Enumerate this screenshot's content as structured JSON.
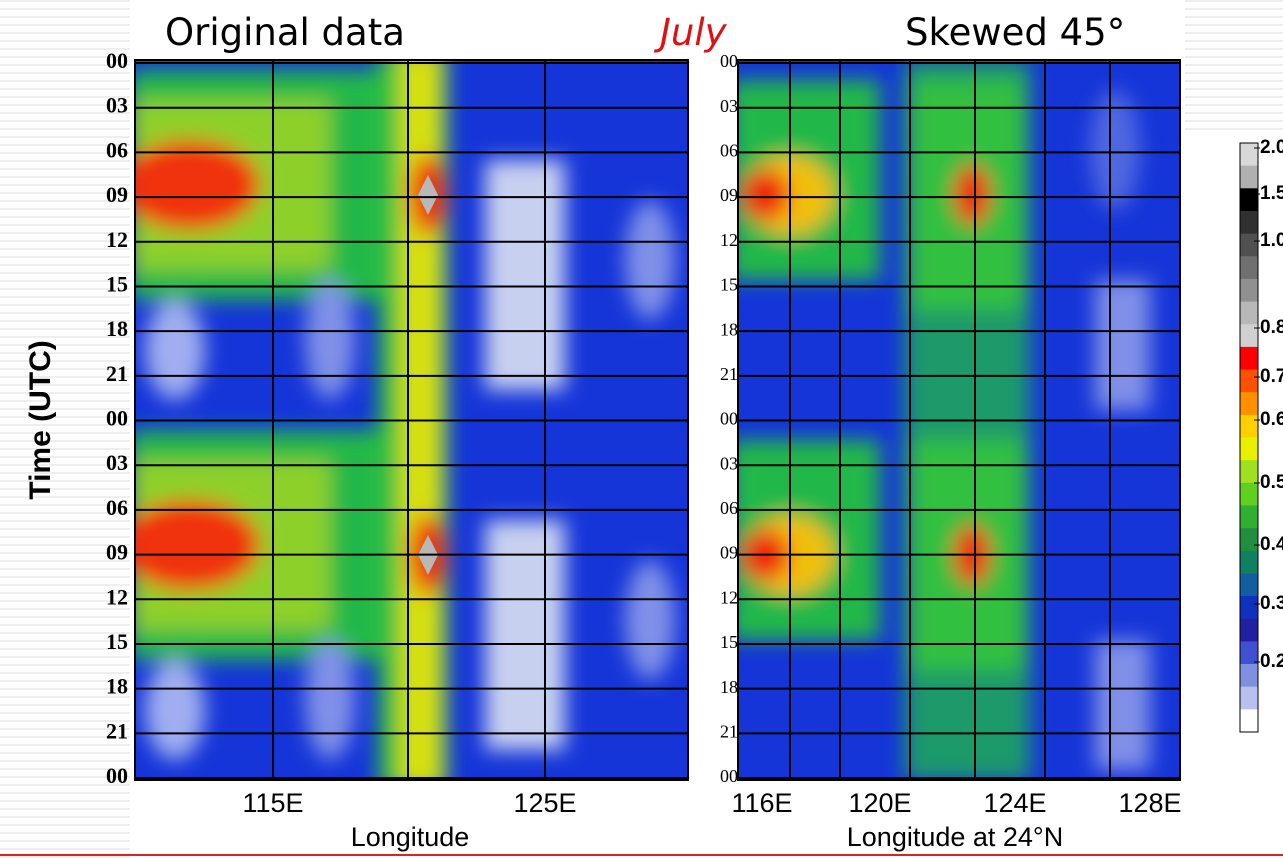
{
  "title": {
    "left": "Original data",
    "center": "July",
    "right": "Skewed 45°"
  },
  "y_axis_label": "Time (UTC)",
  "left_panel": {
    "y_labels": [
      "00",
      "03",
      "06",
      "09",
      "12",
      "15",
      "18",
      "21",
      "00",
      "03",
      "06",
      "09",
      "12",
      "15",
      "18",
      "21",
      "00"
    ],
    "x_labels": [
      "115E",
      "125E"
    ],
    "x_title": "Longitude"
  },
  "right_panel": {
    "y_labels": [
      "00",
      "03",
      "06",
      "09",
      "12",
      "15",
      "18",
      "21",
      "00",
      "03",
      "06",
      "09",
      "12",
      "15",
      "18",
      "21",
      "00"
    ],
    "x_labels": [
      "116E",
      "120E",
      "124E",
      "128E"
    ],
    "x_title": "Longitude at 24°N"
  },
  "colorbar": {
    "labels": [
      "2.0",
      "1.5",
      "1.0",
      "0.8",
      "0.7",
      "0.6",
      "0.5",
      "0.4",
      "0.3",
      "0.2"
    ]
  }
}
